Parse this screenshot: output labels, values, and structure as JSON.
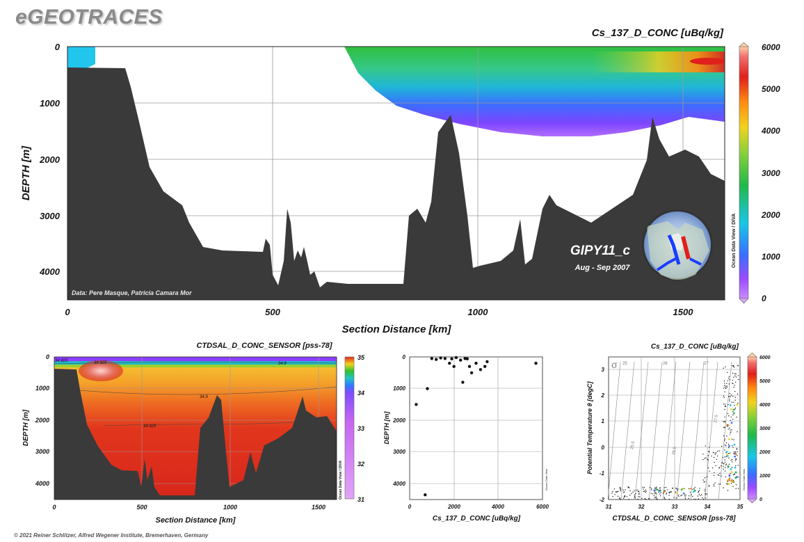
{
  "header": {
    "logo": "eGEOTRACES"
  },
  "footer": {
    "copyright": "© 2021 Reiner Schlitzer, Alfred Wegener Institute, Bremerhaven, Germany"
  },
  "colors": {
    "terrain": "#3a3a3a",
    "grid": "#9a9a9a"
  },
  "colorbar_main": {
    "ticks": [
      "0",
      "1000",
      "2000",
      "3000",
      "4000",
      "5000",
      "6000"
    ]
  },
  "colorbar_sal": {
    "ticks": [
      "31",
      "32",
      "33",
      "34",
      "35"
    ]
  },
  "colorbar_ts": {
    "ticks": [
      "0",
      "1000",
      "2000",
      "3000",
      "4000",
      "5000",
      "6000"
    ]
  },
  "chart_data": [
    {
      "type": "heatmap",
      "title": "Cs_137_D_CONC [uBq/kg]",
      "xlabel": "Section Distance [km]",
      "ylabel": "DEPTH [m]",
      "xlim": [
        0,
        1600
      ],
      "ylim": [
        4500,
        0
      ],
      "x_ticks": [
        "0",
        "500",
        "1000",
        "1500"
      ],
      "y_ticks": [
        "0",
        "1000",
        "2000",
        "3000",
        "4000"
      ],
      "colorbar_range": [
        0,
        6000
      ],
      "annotations": {
        "source": "Data: Pere Masque, Patricia Camara Mor",
        "cruise": "GIPY11_c",
        "dates": "Aug - Sep 2007",
        "watermark": "Ocean Data View / DIVA"
      }
    },
    {
      "type": "heatmap",
      "title": "CTDSAL_D_CONC_SENSOR [pss-78]",
      "xlabel": "Section Distance [km]",
      "ylabel": "DEPTH [m]",
      "xlim": [
        0,
        1600
      ],
      "ylim": [
        4500,
        0
      ],
      "x_ticks": [
        "0",
        "500",
        "1000",
        "1500"
      ],
      "y_ticks": [
        "0",
        "1000",
        "2000",
        "3000",
        "4000"
      ],
      "colorbar_range": [
        31,
        35
      ],
      "contour_labels": [
        "34.925",
        "34.8",
        "34.9",
        "34.925",
        "34.925"
      ],
      "watermark": "Ocean Data View / DIVA"
    },
    {
      "type": "scatter",
      "xlabel": "Cs_137_D_CONC [uBq/kg]",
      "ylabel": "DEPTH [m]",
      "xlim": [
        0,
        6000
      ],
      "ylim": [
        4500,
        0
      ],
      "x_ticks": [
        "0",
        "2000",
        "4000",
        "6000"
      ],
      "y_ticks": [
        "0",
        "1000",
        "2000",
        "3000",
        "4000"
      ],
      "points": [
        {
          "x": 300,
          "y": 1500
        },
        {
          "x": 800,
          "y": 1000
        },
        {
          "x": 1000,
          "y": 50
        },
        {
          "x": 1200,
          "y": 80
        },
        {
          "x": 1400,
          "y": 30
        },
        {
          "x": 1600,
          "y": 50
        },
        {
          "x": 1800,
          "y": 200
        },
        {
          "x": 2000,
          "y": 300
        },
        {
          "x": 2100,
          "y": 20
        },
        {
          "x": 1900,
          "y": 60
        },
        {
          "x": 2300,
          "y": 100
        },
        {
          "x": 2400,
          "y": 800
        },
        {
          "x": 2500,
          "y": 50
        },
        {
          "x": 2600,
          "y": 60
        },
        {
          "x": 2700,
          "y": 300
        },
        {
          "x": 2800,
          "y": 500
        },
        {
          "x": 3000,
          "y": 200
        },
        {
          "x": 3200,
          "y": 400
        },
        {
          "x": 3400,
          "y": 300
        },
        {
          "x": 3500,
          "y": 150
        },
        {
          "x": 5700,
          "y": 200
        },
        {
          "x": 700,
          "y": 4350
        }
      ],
      "watermark": "Ocean Data View"
    },
    {
      "type": "scatter",
      "title": "Cs_137_D_CONC [uBq/kg]",
      "xlabel": "CTDSAL_D_CONC_SENSOR [pss-78]",
      "ylabel": "Potential Temperature θ [degC]",
      "xlim": [
        31,
        35
      ],
      "ylim": [
        -2,
        3.5
      ],
      "x_ticks": [
        "31",
        "32",
        "33",
        "34",
        "35"
      ],
      "y_ticks": [
        "-2",
        "-1",
        "0",
        "1",
        "2",
        "3"
      ],
      "colorbar_range": [
        0,
        6000
      ],
      "isopycnal_symbol": "σ",
      "isopycnal_labels": [
        "25",
        "26",
        "27",
        "25.5",
        "26.5",
        "27.5"
      ],
      "watermark": "Ocean Data View"
    }
  ]
}
